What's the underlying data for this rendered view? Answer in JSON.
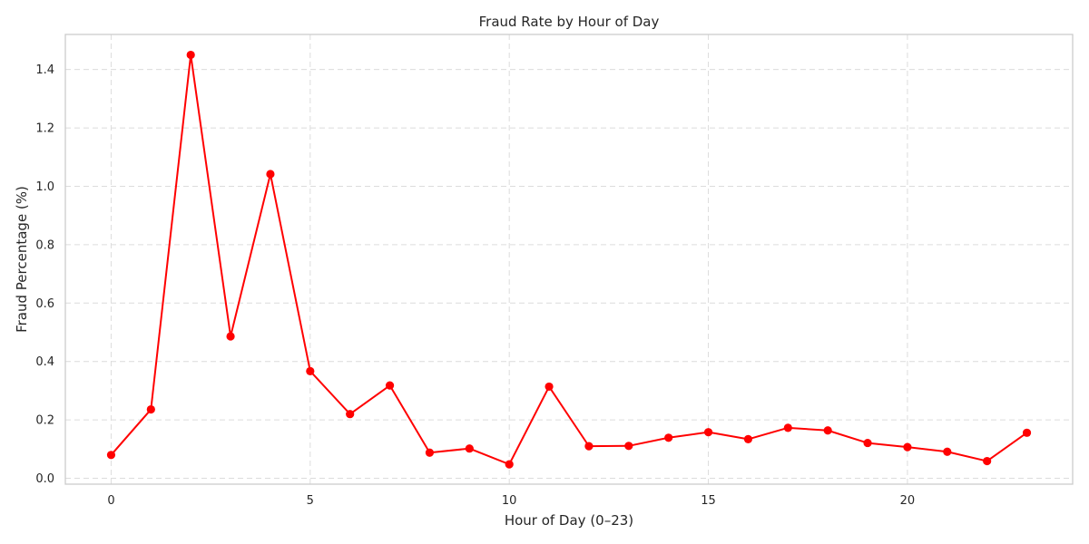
{
  "chart_data": {
    "type": "line",
    "title": "Fraud Rate by Hour of Day",
    "xlabel": "Hour of Day (0–23)",
    "ylabel": "Fraud Percentage (%)",
    "x": [
      0,
      1,
      2,
      3,
      4,
      5,
      6,
      7,
      8,
      9,
      10,
      11,
      12,
      13,
      14,
      15,
      16,
      17,
      18,
      19,
      20,
      21,
      22,
      23
    ],
    "series": [
      {
        "values": [
          0.08,
          0.236,
          1.45,
          0.486,
          1.042,
          0.367,
          0.22,
          0.318,
          0.088,
          0.102,
          0.048,
          0.314,
          0.11,
          0.111,
          0.139,
          0.158,
          0.134,
          0.173,
          0.164,
          0.121,
          0.107,
          0.091,
          0.059,
          0.156
        ],
        "color": "#ff0000"
      }
    ],
    "xlim": [
      -1.15,
      24.15
    ],
    "ylim": [
      -0.02,
      1.52
    ],
    "xticks": [
      0,
      5,
      10,
      15,
      20
    ],
    "yticks": [
      0.0,
      0.2,
      0.4,
      0.6,
      0.8,
      1.0,
      1.2,
      1.4
    ],
    "ytick_labels": [
      "0.0",
      "0.2",
      "0.4",
      "0.6",
      "0.8",
      "1.0",
      "1.2",
      "1.4"
    ],
    "grid": true,
    "marker": "circle"
  }
}
